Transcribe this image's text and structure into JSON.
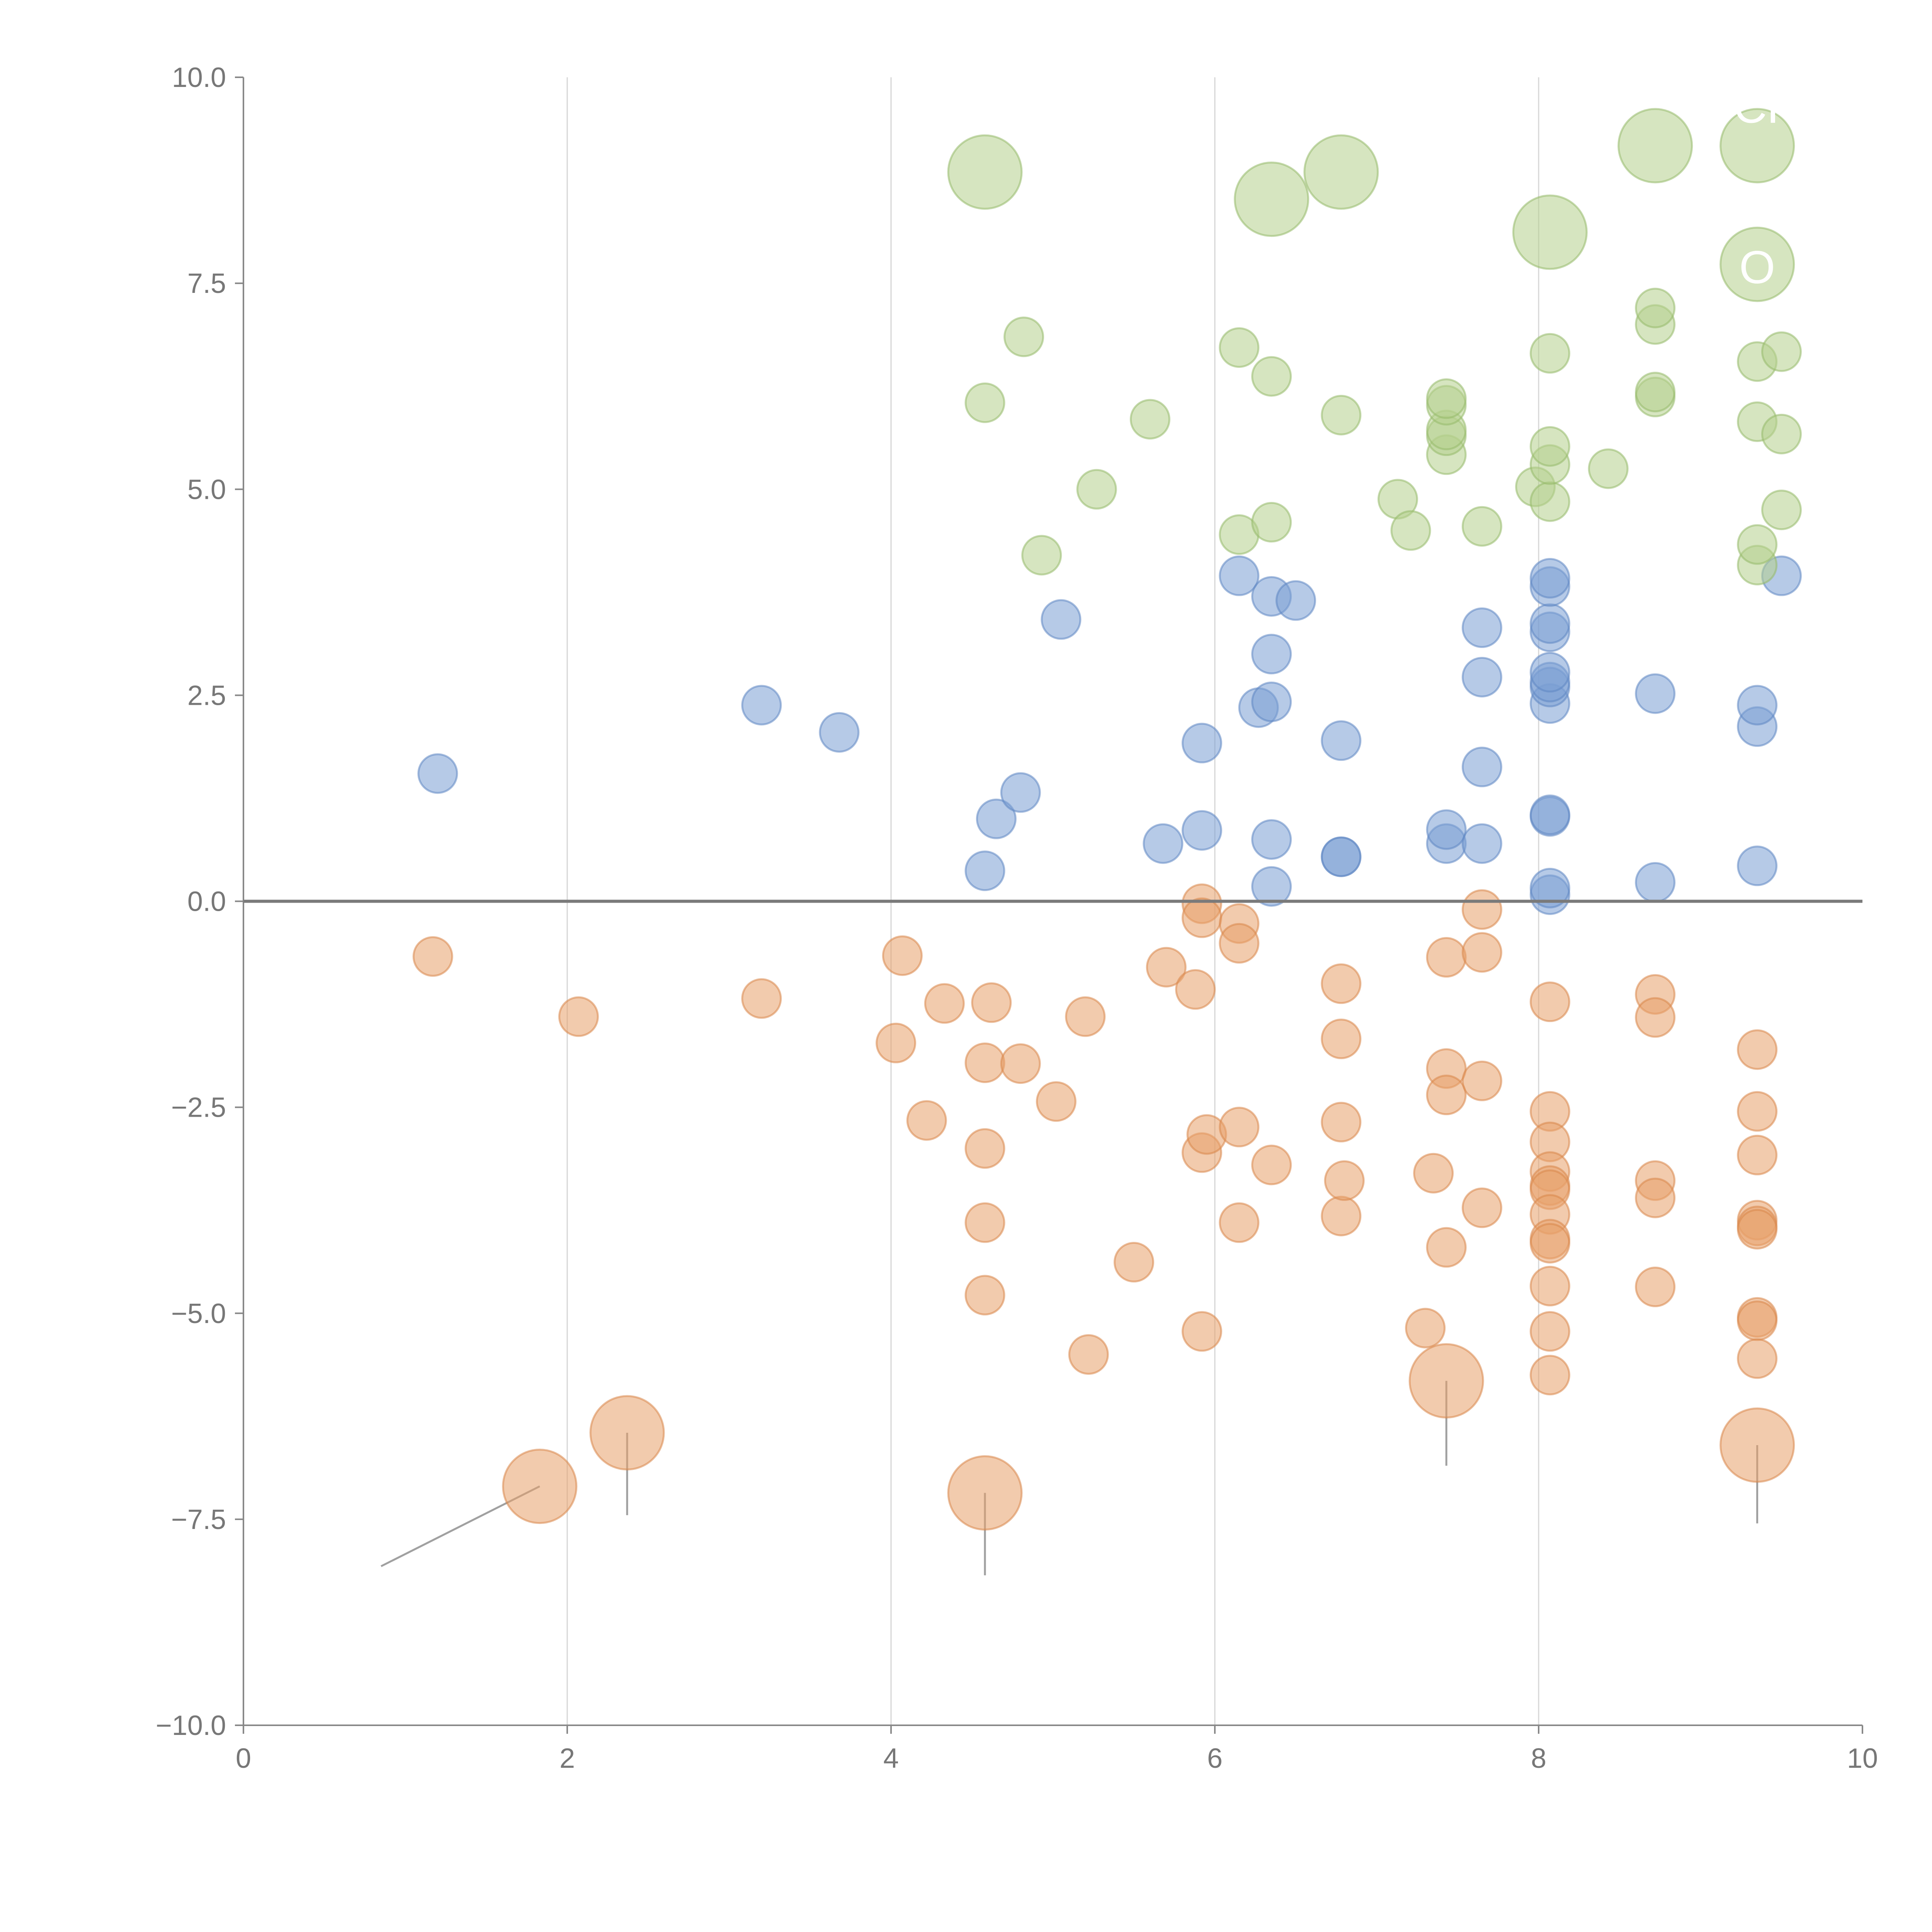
{
  "chart_data": {
    "type": "scatter",
    "title": "",
    "xlabel": "",
    "ylabel": "",
    "xlim": [
      0,
      10
    ],
    "ylim": [
      -10,
      10
    ],
    "x_ticks": [
      0,
      2,
      4,
      6,
      8,
      10
    ],
    "x_tick_labels": [
      "0",
      "2",
      "4",
      "6",
      "8",
      "10"
    ],
    "y_ticks": [
      10,
      7.5,
      5,
      2.5,
      0,
      -2.5,
      -5,
      -7.5,
      -10
    ],
    "y_tick_labels": [
      "10.0",
      "7.5",
      "5.0",
      "2.5",
      "0.0",
      "−2.5",
      "−5.0",
      "−7.5",
      "−10.0"
    ],
    "vertical_grid_at": [
      2,
      4,
      6,
      8
    ],
    "horizontal_reference_line": 0,
    "colors": {
      "blue": "#7a9fd4",
      "orange": "#e8a06a",
      "green": "#b4cf8c",
      "blue_edge": "#5f86c2",
      "orange_edge": "#d9874a",
      "green_edge": "#96b96a"
    },
    "series": [
      {
        "name": "blue",
        "color": "#7a9fd4",
        "edge": "#5f86c2",
        "points": [
          {
            "x": 1.2,
            "y": 1.55
          },
          {
            "x": 3.2,
            "y": 2.38
          },
          {
            "x": 3.68,
            "y": 2.05
          },
          {
            "x": 4.58,
            "y": 0.37
          },
          {
            "x": 4.65,
            "y": 1.0
          },
          {
            "x": 4.8,
            "y": 1.32
          },
          {
            "x": 5.05,
            "y": 3.42
          },
          {
            "x": 5.68,
            "y": 0.7
          },
          {
            "x": 5.92,
            "y": 0.86
          },
          {
            "x": 5.92,
            "y": 1.92
          },
          {
            "x": 6.15,
            "y": 3.95
          },
          {
            "x": 6.27,
            "y": 2.35
          },
          {
            "x": 6.35,
            "y": 0.18
          },
          {
            "x": 6.35,
            "y": 0.75
          },
          {
            "x": 6.35,
            "y": 2.42
          },
          {
            "x": 6.35,
            "y": 3.0
          },
          {
            "x": 6.35,
            "y": 3.7
          },
          {
            "x": 6.5,
            "y": 3.65
          },
          {
            "x": 6.78,
            "y": 0.54
          },
          {
            "x": 6.78,
            "y": 0.54
          },
          {
            "x": 6.78,
            "y": 1.95
          },
          {
            "x": 7.43,
            "y": 0.7
          },
          {
            "x": 7.43,
            "y": 0.87
          },
          {
            "x": 7.65,
            "y": 0.7
          },
          {
            "x": 7.65,
            "y": 1.63
          },
          {
            "x": 7.65,
            "y": 2.72
          },
          {
            "x": 7.65,
            "y": 3.32
          },
          {
            "x": 8.07,
            "y": 0.08
          },
          {
            "x": 8.07,
            "y": 0.16
          },
          {
            "x": 8.07,
            "y": 1.03
          },
          {
            "x": 8.07,
            "y": 1.05
          },
          {
            "x": 8.07,
            "y": 2.4
          },
          {
            "x": 8.07,
            "y": 2.6
          },
          {
            "x": 8.07,
            "y": 2.66
          },
          {
            "x": 8.07,
            "y": 2.78
          },
          {
            "x": 8.07,
            "y": 3.27
          },
          {
            "x": 8.07,
            "y": 3.37
          },
          {
            "x": 8.07,
            "y": 3.82
          },
          {
            "x": 8.07,
            "y": 3.92
          },
          {
            "x": 8.72,
            "y": 0.23
          },
          {
            "x": 8.72,
            "y": 2.52
          },
          {
            "x": 9.35,
            "y": 0.43
          },
          {
            "x": 9.35,
            "y": 2.12
          },
          {
            "x": 9.35,
            "y": 2.38
          },
          {
            "x": 9.5,
            "y": 3.95
          }
        ]
      },
      {
        "name": "orange",
        "color": "#e8a06a",
        "edge": "#d9874a",
        "points": [
          {
            "x": 1.17,
            "y": -0.67
          },
          {
            "x": 2.07,
            "y": -1.4
          },
          {
            "x": 3.2,
            "y": -1.18
          },
          {
            "x": 4.03,
            "y": -1.72
          },
          {
            "x": 4.07,
            "y": -0.66
          },
          {
            "x": 4.22,
            "y": -2.66
          },
          {
            "x": 4.33,
            "y": -1.24
          },
          {
            "x": 4.58,
            "y": -1.96
          },
          {
            "x": 4.58,
            "y": -3.0
          },
          {
            "x": 4.58,
            "y": -3.9
          },
          {
            "x": 4.58,
            "y": -4.78
          },
          {
            "x": 4.62,
            "y": -1.23
          },
          {
            "x": 4.8,
            "y": -1.97
          },
          {
            "x": 5.02,
            "y": -2.43
          },
          {
            "x": 5.2,
            "y": -1.4
          },
          {
            "x": 5.22,
            "y": -5.5
          },
          {
            "x": 5.5,
            "y": -4.38
          },
          {
            "x": 5.7,
            "y": -0.8
          },
          {
            "x": 5.88,
            "y": -1.07
          },
          {
            "x": 5.92,
            "y": -0.03
          },
          {
            "x": 5.92,
            "y": -0.2
          },
          {
            "x": 5.92,
            "y": -3.05
          },
          {
            "x": 5.92,
            "y": -5.22
          },
          {
            "x": 5.95,
            "y": -2.83
          },
          {
            "x": 6.15,
            "y": -0.27
          },
          {
            "x": 6.15,
            "y": -0.51
          },
          {
            "x": 6.15,
            "y": -2.74
          },
          {
            "x": 6.15,
            "y": -3.9
          },
          {
            "x": 6.35,
            "y": -3.2
          },
          {
            "x": 6.78,
            "y": -1.0
          },
          {
            "x": 6.78,
            "y": -1.67
          },
          {
            "x": 6.78,
            "y": -2.68
          },
          {
            "x": 6.78,
            "y": -3.82
          },
          {
            "x": 6.8,
            "y": -3.39
          },
          {
            "x": 7.3,
            "y": -5.18
          },
          {
            "x": 7.35,
            "y": -3.3
          },
          {
            "x": 7.43,
            "y": -0.68
          },
          {
            "x": 7.43,
            "y": -2.03
          },
          {
            "x": 7.43,
            "y": -2.35
          },
          {
            "x": 7.43,
            "y": -4.2
          },
          {
            "x": 7.65,
            "y": -0.1
          },
          {
            "x": 7.65,
            "y": -0.62
          },
          {
            "x": 7.65,
            "y": -2.18
          },
          {
            "x": 7.65,
            "y": -3.72
          },
          {
            "x": 8.07,
            "y": -1.22
          },
          {
            "x": 8.07,
            "y": -2.55
          },
          {
            "x": 8.07,
            "y": -2.92
          },
          {
            "x": 8.07,
            "y": -3.28
          },
          {
            "x": 8.07,
            "y": -3.45
          },
          {
            "x": 8.07,
            "y": -3.5
          },
          {
            "x": 8.07,
            "y": -3.8
          },
          {
            "x": 8.07,
            "y": -4.1
          },
          {
            "x": 8.07,
            "y": -4.15
          },
          {
            "x": 8.07,
            "y": -4.67
          },
          {
            "x": 8.07,
            "y": -5.22
          },
          {
            "x": 8.07,
            "y": -5.75
          },
          {
            "x": 8.72,
            "y": -1.13
          },
          {
            "x": 8.72,
            "y": -1.41
          },
          {
            "x": 8.72,
            "y": -3.39
          },
          {
            "x": 8.72,
            "y": -3.6
          },
          {
            "x": 8.72,
            "y": -4.68
          },
          {
            "x": 9.35,
            "y": -1.8
          },
          {
            "x": 9.35,
            "y": -2.55
          },
          {
            "x": 9.35,
            "y": -3.08
          },
          {
            "x": 9.35,
            "y": -3.87
          },
          {
            "x": 9.35,
            "y": -3.94
          },
          {
            "x": 9.35,
            "y": -3.98
          },
          {
            "x": 9.35,
            "y": -5.05
          },
          {
            "x": 9.35,
            "y": -5.09
          },
          {
            "x": 9.35,
            "y": -5.55
          }
        ]
      },
      {
        "name": "green",
        "color": "#b4cf8c",
        "edge": "#96b96a",
        "points": [
          {
            "x": 4.58,
            "y": 6.05
          },
          {
            "x": 4.82,
            "y": 6.85
          },
          {
            "x": 4.93,
            "y": 4.2
          },
          {
            "x": 5.27,
            "y": 5.0
          },
          {
            "x": 5.6,
            "y": 5.85
          },
          {
            "x": 6.15,
            "y": 4.45
          },
          {
            "x": 6.15,
            "y": 6.72
          },
          {
            "x": 6.35,
            "y": 4.6
          },
          {
            "x": 6.35,
            "y": 6.37
          },
          {
            "x": 6.78,
            "y": 5.9
          },
          {
            "x": 7.13,
            "y": 4.88
          },
          {
            "x": 7.21,
            "y": 4.5
          },
          {
            "x": 7.43,
            "y": 5.42
          },
          {
            "x": 7.43,
            "y": 5.65
          },
          {
            "x": 7.43,
            "y": 5.72
          },
          {
            "x": 7.43,
            "y": 6.02
          },
          {
            "x": 7.43,
            "y": 6.1
          },
          {
            "x": 7.65,
            "y": 4.55
          },
          {
            "x": 7.98,
            "y": 5.03
          },
          {
            "x": 8.07,
            "y": 4.85
          },
          {
            "x": 8.07,
            "y": 5.3
          },
          {
            "x": 8.07,
            "y": 5.52
          },
          {
            "x": 8.07,
            "y": 6.65
          },
          {
            "x": 8.43,
            "y": 5.25
          },
          {
            "x": 8.72,
            "y": 6.12
          },
          {
            "x": 8.72,
            "y": 6.18
          },
          {
            "x": 8.72,
            "y": 7.0
          },
          {
            "x": 8.72,
            "y": 7.2
          },
          {
            "x": 9.35,
            "y": 4.08
          },
          {
            "x": 9.35,
            "y": 4.33
          },
          {
            "x": 9.35,
            "y": 5.82
          },
          {
            "x": 9.35,
            "y": 6.55
          },
          {
            "x": 9.5,
            "y": 4.75
          },
          {
            "x": 9.5,
            "y": 5.67
          },
          {
            "x": 9.5,
            "y": 6.67
          }
        ]
      }
    ],
    "highlights": [
      {
        "series": "orange",
        "x": 1.83,
        "y": -7.1,
        "leader_to": [
          0.85,
          -8.07
        ]
      },
      {
        "series": "orange",
        "x": 2.37,
        "y": -6.45,
        "leader_to": [
          2.37,
          -7.45
        ]
      },
      {
        "series": "orange",
        "x": 4.58,
        "y": -7.18,
        "leader_to": [
          4.58,
          -8.18
        ]
      },
      {
        "series": "orange",
        "x": 7.43,
        "y": -5.82,
        "leader_to": [
          7.43,
          -6.85
        ]
      },
      {
        "series": "orange",
        "x": 9.35,
        "y": -6.6,
        "leader_to": [
          9.35,
          -7.55
        ]
      },
      {
        "series": "green",
        "x": 4.58,
        "y": 8.85,
        "leader_to": [
          4.58,
          8.85
        ]
      },
      {
        "series": "green",
        "x": 6.35,
        "y": 8.52,
        "leader_to": [
          6.35,
          8.52
        ]
      },
      {
        "series": "green",
        "x": 6.78,
        "y": 8.85,
        "leader_to": [
          6.78,
          8.85
        ]
      },
      {
        "series": "green",
        "x": 8.07,
        "y": 8.12,
        "leader_to": [
          8.07,
          8.12
        ]
      },
      {
        "series": "green",
        "x": 8.72,
        "y": 9.17,
        "leader_to": [
          8.72,
          9.17
        ]
      },
      {
        "series": "green",
        "x": 9.35,
        "y": 9.17,
        "leader_to": [
          9.35,
          9.17
        ]
      },
      {
        "series": "green",
        "x": 9.35,
        "y": 7.73,
        "leader_to": [
          9.35,
          7.73
        ]
      }
    ],
    "annotations": [
      {
        "text": "CHI",
        "x": 9.45,
        "y": 9.45
      },
      {
        "text": "O",
        "x": 9.35,
        "y": 7.5
      }
    ]
  }
}
